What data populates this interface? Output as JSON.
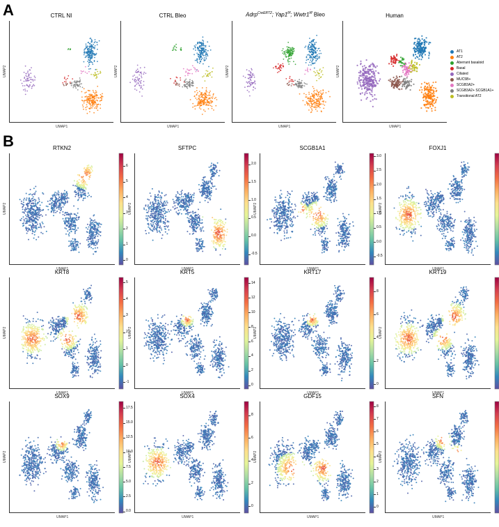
{
  "panel_a": {
    "letter": "A",
    "axis_x": "UMAP1",
    "axis_y": "UMAP2",
    "titles": {
      "ctrl_ni": "CTRL NI",
      "ctrl_bleo": "CTRL Bleo",
      "mutant_prefix": "Adrp",
      "mutant_sup1": "CreERT2",
      "mutant_mid1": "; Yap1",
      "mutant_sup2": "f/f",
      "mutant_mid2": "; Wwtr1",
      "mutant_sup3": "f/f",
      "mutant_suffix": " Bleo",
      "human": "Human"
    },
    "legend": [
      {
        "label": "AT1",
        "color": "#1f77b4"
      },
      {
        "label": "AT2",
        "color": "#ff7f0e"
      },
      {
        "label": "Aberrant basaloid",
        "color": "#2ca02c"
      },
      {
        "label": "Basal",
        "color": "#d62728"
      },
      {
        "label": "Ciliated",
        "color": "#9467bd"
      },
      {
        "label": "MUC5B+",
        "color": "#8c564b"
      },
      {
        "label": "SCGB3A2+",
        "color": "#e377c2"
      },
      {
        "label": "SCGB3A2+ SCGB1A1+",
        "color": "#7f7f7f"
      },
      {
        "label": "Transitional AT2",
        "color": "#bcbd22"
      }
    ]
  },
  "panel_b": {
    "letter": "B",
    "axis_x": "UMAP1",
    "axis_y": "UMAP2",
    "colormap": [
      "#5e4fa2",
      "#3288bd",
      "#66c2a5",
      "#abdda4",
      "#e6f598",
      "#fee08b",
      "#fdae61",
      "#f46d43",
      "#d53e4f",
      "#9e0142"
    ]
  },
  "chart_data": [
    {
      "type": "scatter",
      "title": "RTKN2",
      "xlabel": "UMAP1",
      "ylabel": "UMAP2",
      "colorbar_ticks": [
        "0",
        "1",
        "2",
        "3",
        "4",
        "5",
        "6"
      ],
      "colorbar_range": [
        -0.3,
        6.8
      ],
      "hot_region": "upper-right"
    },
    {
      "type": "scatter",
      "title": "SFTPC",
      "xlabel": "UMAP1",
      "ylabel": "UMAP2",
      "colorbar_ticks": [
        "-0.5",
        "0.0",
        "0.5",
        "1.0",
        "1.5",
        "2.0"
      ],
      "colorbar_range": [
        -0.8,
        2.3
      ],
      "hot_region": "lower-right"
    },
    {
      "type": "scatter",
      "title": "SCGB1A1",
      "xlabel": "UMAP1",
      "ylabel": "UMAP2",
      "colorbar_ticks": [
        "-0.5",
        "0.0",
        "0.5",
        "1.0",
        "1.5",
        "2.0",
        "2.5",
        "3.0"
      ],
      "colorbar_range": [
        -0.8,
        3.1
      ],
      "hot_region": "center"
    },
    {
      "type": "scatter",
      "title": "FOXJ1",
      "xlabel": "UMAP1",
      "ylabel": "UMAP2",
      "colorbar_ticks": [
        "0",
        "1",
        "2",
        "3",
        "4",
        "5",
        "6",
        "7"
      ],
      "colorbar_range": [
        -0.4,
        7.4
      ],
      "hot_region": "left"
    },
    {
      "type": "scatter",
      "title": "KRT8",
      "xlabel": "UMAP1",
      "ylabel": "UMAP2",
      "colorbar_ticks": [
        "-1",
        "0",
        "1",
        "2",
        "3",
        "4",
        "5"
      ],
      "colorbar_range": [
        -1.4,
        5.3
      ],
      "hot_region": "broad"
    },
    {
      "type": "scatter",
      "title": "KRT5",
      "xlabel": "UMAP1",
      "ylabel": "UMAP2",
      "colorbar_ticks": [
        "0",
        "2",
        "4",
        "6",
        "8",
        "10",
        "12",
        "14"
      ],
      "colorbar_range": [
        -0.5,
        14.8
      ],
      "hot_region": "small-center"
    },
    {
      "type": "scatter",
      "title": "KRT17",
      "xlabel": "UMAP1",
      "ylabel": "UMAP2",
      "colorbar_ticks": [
        "0",
        "2",
        "4",
        "6",
        "8"
      ],
      "colorbar_range": [
        -0.4,
        9.2
      ],
      "hot_region": "small-center"
    },
    {
      "type": "scatter",
      "title": "KRT19",
      "xlabel": "UMAP1",
      "ylabel": "UMAP2",
      "colorbar_ticks": [
        "-1",
        "0",
        "1",
        "2",
        "3",
        "4"
      ],
      "colorbar_range": [
        -1.4,
        4.4
      ],
      "hot_region": "broad"
    },
    {
      "type": "scatter",
      "title": "SOX9",
      "xlabel": "UMAP1",
      "ylabel": "UMAP2",
      "colorbar_ticks": [
        "0.0",
        "2.5",
        "5.0",
        "7.5",
        "10.0",
        "12.5",
        "15.0",
        "17.5"
      ],
      "colorbar_range": [
        -0.3,
        18.6
      ],
      "hot_region": "small-center"
    },
    {
      "type": "scatter",
      "title": "SOX4",
      "xlabel": "UMAP1",
      "ylabel": "UMAP2",
      "colorbar_ticks": [
        "0",
        "2",
        "4",
        "6",
        "8"
      ],
      "colorbar_range": [
        -0.6,
        9.2
      ],
      "hot_region": "left"
    },
    {
      "type": "scatter",
      "title": "GDF15",
      "xlabel": "UMAP1",
      "ylabel": "UMAP2",
      "colorbar_ticks": [
        "0",
        "1",
        "2",
        "3",
        "4",
        "5",
        "6",
        "7",
        "8"
      ],
      "colorbar_range": [
        -0.5,
        8.4
      ],
      "hot_region": "broad-low"
    },
    {
      "type": "scatter",
      "title": "SFN",
      "xlabel": "UMAP1",
      "ylabel": "UMAP2",
      "colorbar_ticks": [
        "0",
        "2",
        "4",
        "6",
        "8"
      ],
      "colorbar_range": [
        -0.4,
        8.8
      ],
      "hot_region": "upper-center"
    }
  ]
}
